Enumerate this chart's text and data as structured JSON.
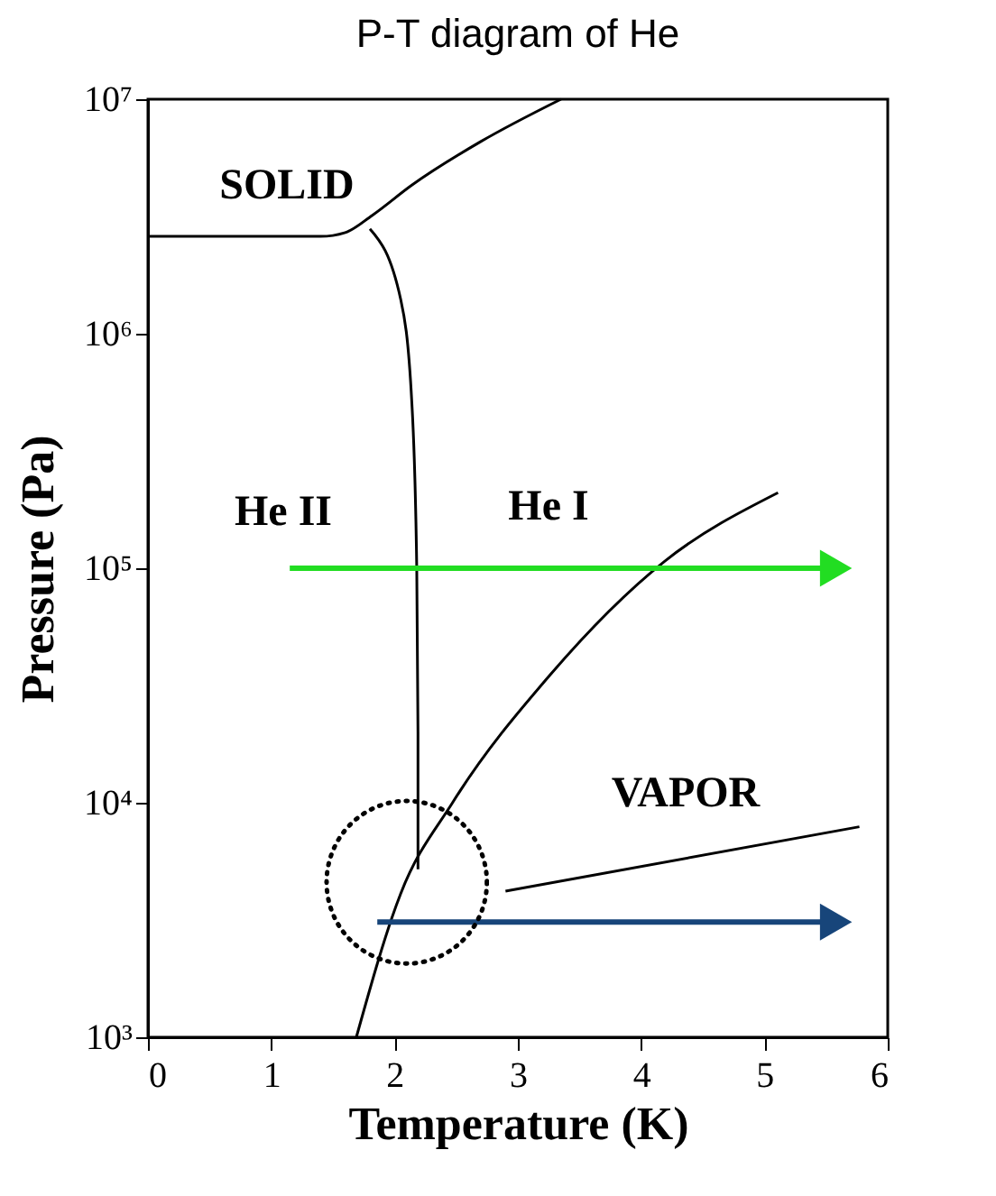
{
  "chart_data": {
    "type": "line",
    "title": "P-T diagram of He",
    "xlabel": "Temperature (K)",
    "ylabel": "Pressure (Pa)",
    "log": "y",
    "grid": false,
    "xlim": [
      0,
      6
    ],
    "xticks": [
      0,
      1,
      2,
      3,
      4,
      5,
      6
    ],
    "ylim": [
      1000,
      10000000
    ],
    "yticks": [
      {
        "value": 1000,
        "label": "10³"
      },
      {
        "value": 10000,
        "label": "10⁴"
      },
      {
        "value": 100000,
        "label": "10⁵"
      },
      {
        "value": 1000000,
        "label": "10⁶"
      },
      {
        "value": 10000000,
        "label": "10⁷"
      }
    ],
    "series": [
      {
        "color": "#000000",
        "x": [
          0,
          1.0,
          1.4,
          1.6,
          1.82,
          2.14,
          2.7,
          3.35
        ],
        "values": [
          2600000,
          2600000,
          2600000,
          2700000,
          3200000,
          4300000,
          6600000,
          10000000
        ]
      },
      {
        "color": "#000000",
        "x": [
          1.8,
          2.05,
          2.14,
          2.18,
          2.19,
          2.19
        ],
        "values": [
          2800000,
          1400000,
          510000,
          100000,
          20000,
          5200
        ]
      },
      {
        "color": "#000000",
        "x": [
          1.69,
          2.05,
          2.47,
          3.26,
          4.19,
          5.11
        ],
        "values": [
          1000,
          4100,
          10000,
          35000,
          107000,
          210000
        ]
      },
      {
        "color": "#22dd22",
        "marker": "triangle",
        "x": [
          1.15,
          5.58
        ],
        "values": [
          100000,
          100000
        ]
      },
      {
        "color": "#17457a",
        "marker": "triangle",
        "x": [
          1.86,
          5.58
        ],
        "values": [
          3100,
          3100
        ]
      },
      {
        "color": "#000000",
        "x": [
          2.9,
          5.77
        ],
        "values": [
          4200,
          7900
        ]
      }
    ],
    "annotations": [
      "SOLID",
      "He II",
      "He I",
      "VAPOR"
    ]
  }
}
